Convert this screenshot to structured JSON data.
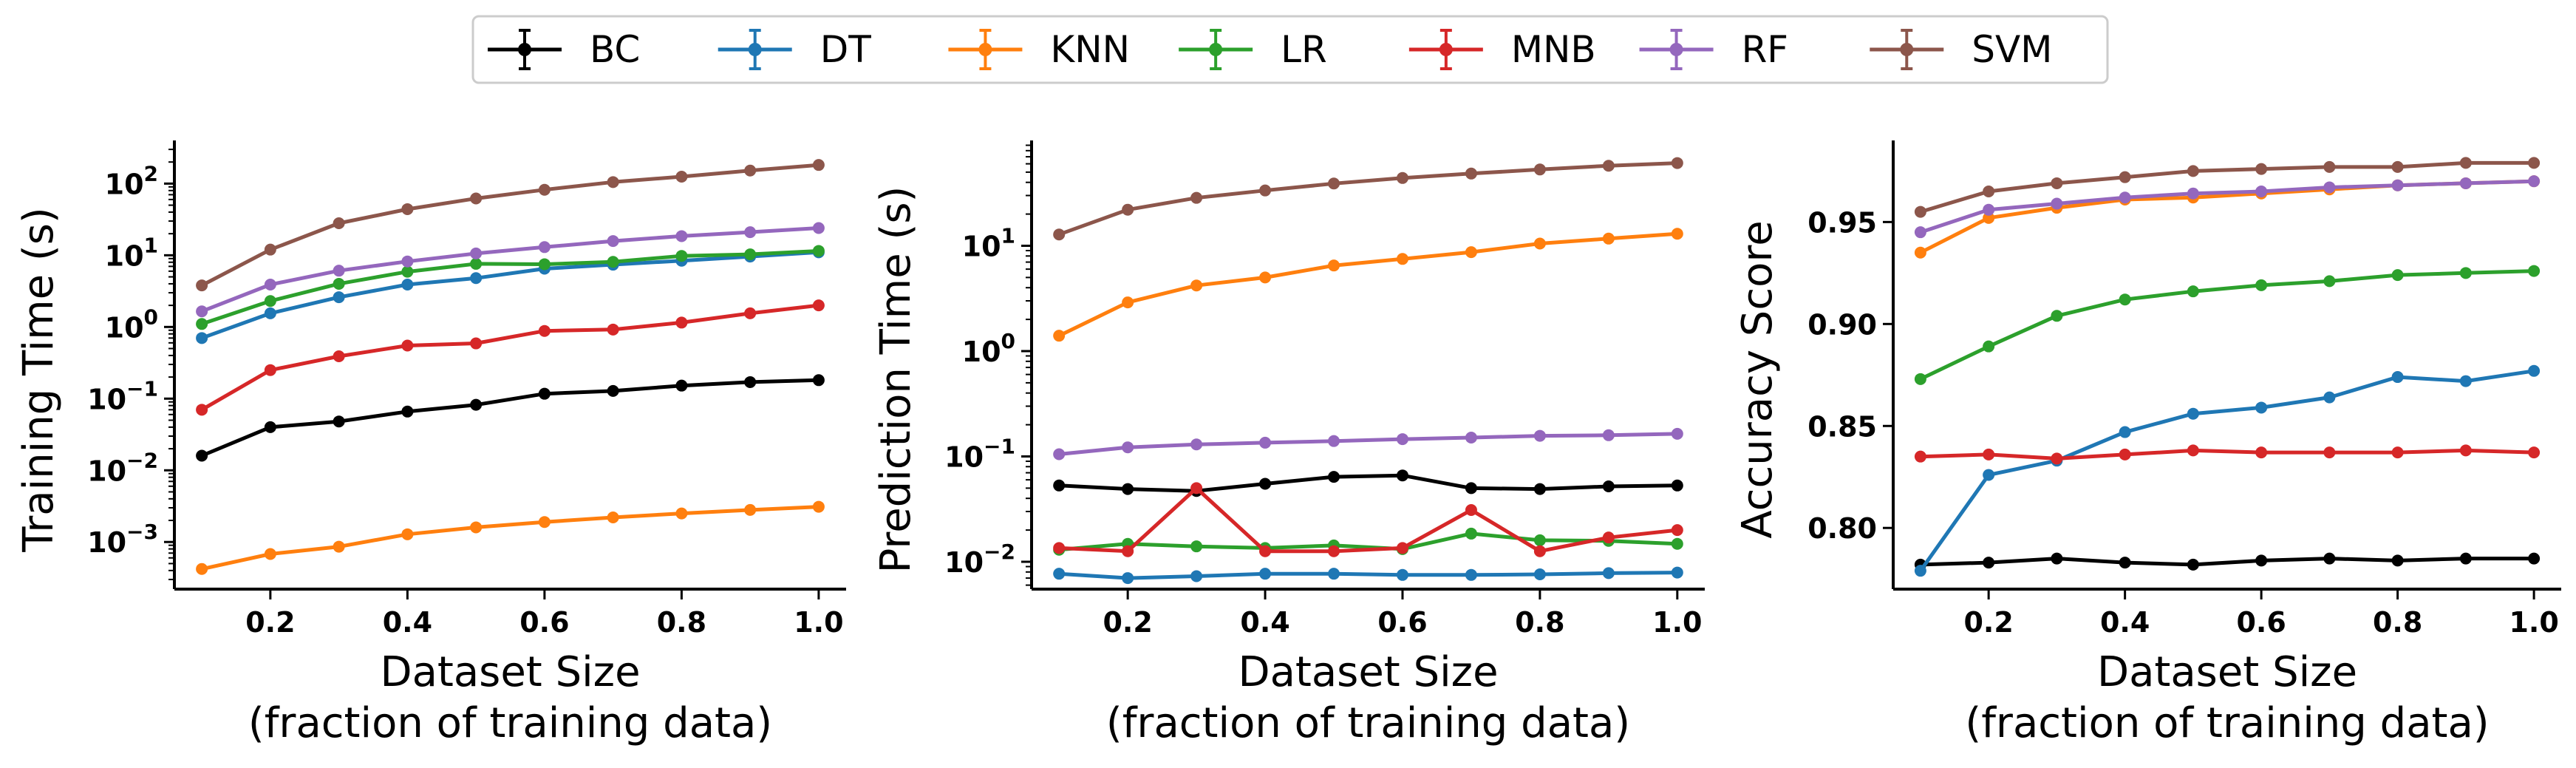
{
  "legend": {
    "items": [
      {
        "name": "BC",
        "color": "#000000"
      },
      {
        "name": "DT",
        "color": "#1f77b4"
      },
      {
        "name": "KNN",
        "color": "#ff7f0e"
      },
      {
        "name": "LR",
        "color": "#2ca02c"
      },
      {
        "name": "MNB",
        "color": "#d62728"
      },
      {
        "name": "RF",
        "color": "#9467bd"
      },
      {
        "name": "SVM",
        "color": "#8c564b"
      }
    ],
    "placement": "top-center"
  },
  "chart_data": [
    {
      "type": "line",
      "ylabel": "Training Time (s)",
      "xlabel_line1": "Dataset Size",
      "xlabel_line2": "(fraction of training data)",
      "yscale": "log",
      "xlim": [
        0.06,
        1.04
      ],
      "ylim": [
        0.00022,
        400
      ],
      "xticks": [
        0.2,
        0.4,
        0.6,
        0.8,
        1.0
      ],
      "xtick_labels": [
        "0.2",
        "0.4",
        "0.6",
        "0.8",
        "1.0"
      ],
      "yticks": [
        0.001,
        0.01,
        0.1,
        1,
        10,
        100
      ],
      "ytick_labels": [
        {
          "base": "10",
          "exp": "−3"
        },
        {
          "base": "10",
          "exp": "−2"
        },
        {
          "base": "10",
          "exp": "−1"
        },
        {
          "base": "10",
          "exp": "0"
        },
        {
          "base": "10",
          "exp": "1"
        },
        {
          "base": "10",
          "exp": "2"
        }
      ],
      "x": [
        0.1,
        0.2,
        0.3,
        0.4,
        0.5,
        0.6,
        0.7,
        0.8,
        0.9,
        1.0
      ],
      "series": [
        {
          "name": "BC",
          "values": [
            0.016,
            0.04,
            0.048,
            0.066,
            0.082,
            0.117,
            0.128,
            0.152,
            0.17,
            0.181
          ]
        },
        {
          "name": "DT",
          "values": [
            0.7,
            1.55,
            2.6,
            3.9,
            4.8,
            6.5,
            7.4,
            8.4,
            9.6,
            11.0
          ]
        },
        {
          "name": "KNN",
          "values": [
            0.00042,
            0.00068,
            0.00086,
            0.00128,
            0.0016,
            0.0019,
            0.0022,
            0.0025,
            0.0028,
            0.0031
          ]
        },
        {
          "name": "LR",
          "values": [
            1.1,
            2.3,
            4.0,
            5.9,
            7.6,
            7.5,
            8.1,
            9.8,
            10.3,
            11.5
          ]
        },
        {
          "name": "MNB",
          "values": [
            0.07,
            0.25,
            0.39,
            0.55,
            0.59,
            0.88,
            0.92,
            1.15,
            1.55,
            2.0
          ]
        },
        {
          "name": "RF",
          "values": [
            1.65,
            3.9,
            6.1,
            8.2,
            10.6,
            13.0,
            15.8,
            18.5,
            21.0,
            24.0
          ]
        },
        {
          "name": "SVM",
          "values": [
            3.8,
            12.0,
            28.0,
            44.0,
            62.0,
            82.0,
            105.0,
            125.0,
            152.0,
            182.0
          ]
        }
      ]
    },
    {
      "type": "line",
      "ylabel": "Prediction Time (s)",
      "xlabel_line1": "Dataset Size",
      "xlabel_line2": "(fraction of training data)",
      "yscale": "log",
      "xlim": [
        0.06,
        1.04
      ],
      "ylim": [
        0.0055,
        100
      ],
      "xticks": [
        0.2,
        0.4,
        0.6,
        0.8,
        1.0
      ],
      "xtick_labels": [
        "0.2",
        "0.4",
        "0.6",
        "0.8",
        "1.0"
      ],
      "yticks": [
        0.01,
        0.1,
        1,
        10
      ],
      "ytick_labels": [
        {
          "base": "10",
          "exp": "−2"
        },
        {
          "base": "10",
          "exp": "−1"
        },
        {
          "base": "10",
          "exp": "0"
        },
        {
          "base": "10",
          "exp": "1"
        }
      ],
      "x": [
        0.1,
        0.2,
        0.3,
        0.4,
        0.5,
        0.6,
        0.7,
        0.8,
        0.9,
        1.0
      ],
      "series": [
        {
          "name": "BC",
          "values": [
            0.053,
            0.049,
            0.047,
            0.055,
            0.064,
            0.066,
            0.05,
            0.049,
            0.052,
            0.053
          ]
        },
        {
          "name": "DT",
          "values": [
            0.0077,
            0.007,
            0.0073,
            0.0077,
            0.0077,
            0.0075,
            0.0075,
            0.0076,
            0.0078,
            0.0079
          ]
        },
        {
          "name": "KNN",
          "values": [
            1.4,
            2.9,
            4.2,
            5.0,
            6.5,
            7.5,
            8.7,
            10.5,
            11.7,
            13.0
          ]
        },
        {
          "name": "LR",
          "values": [
            0.013,
            0.0148,
            0.014,
            0.0135,
            0.0143,
            0.0132,
            0.0185,
            0.016,
            0.0158,
            0.0148
          ]
        },
        {
          "name": "MNB",
          "values": [
            0.0135,
            0.0126,
            0.05,
            0.0126,
            0.0126,
            0.0135,
            0.031,
            0.0126,
            0.017,
            0.02
          ]
        },
        {
          "name": "RF",
          "values": [
            0.105,
            0.122,
            0.13,
            0.135,
            0.14,
            0.146,
            0.151,
            0.157,
            0.159,
            0.164
          ]
        },
        {
          "name": "SVM",
          "values": [
            12.8,
            22.0,
            28.5,
            33.5,
            39.0,
            44.0,
            48.5,
            53.0,
            57.5,
            61.0
          ]
        }
      ]
    },
    {
      "type": "line",
      "ylabel": "Accuracy Score",
      "xlabel_line1": "Dataset Size",
      "xlabel_line2": "(fraction of training data)",
      "yscale": "linear",
      "xlim": [
        0.06,
        1.04
      ],
      "ylim": [
        0.77,
        0.99
      ],
      "xticks": [
        0.2,
        0.4,
        0.6,
        0.8,
        1.0
      ],
      "xtick_labels": [
        "0.2",
        "0.4",
        "0.6",
        "0.8",
        "1.0"
      ],
      "yticks": [
        0.8,
        0.85,
        0.9,
        0.95
      ],
      "ytick_labels": [
        "0.80",
        "0.85",
        "0.90",
        "0.95"
      ],
      "x": [
        0.1,
        0.2,
        0.3,
        0.4,
        0.5,
        0.6,
        0.7,
        0.8,
        0.9,
        1.0
      ],
      "series": [
        {
          "name": "BC",
          "values": [
            0.782,
            0.783,
            0.785,
            0.783,
            0.782,
            0.784,
            0.785,
            0.784,
            0.785,
            0.785
          ]
        },
        {
          "name": "DT",
          "values": [
            0.779,
            0.826,
            0.833,
            0.847,
            0.856,
            0.859,
            0.864,
            0.874,
            0.872,
            0.877
          ]
        },
        {
          "name": "KNN",
          "values": [
            0.935,
            0.952,
            0.957,
            0.961,
            0.962,
            0.964,
            0.966,
            0.968,
            0.969,
            0.97
          ]
        },
        {
          "name": "LR",
          "values": [
            0.873,
            0.889,
            0.904,
            0.912,
            0.916,
            0.919,
            0.921,
            0.924,
            0.925,
            0.926
          ]
        },
        {
          "name": "MNB",
          "values": [
            0.835,
            0.836,
            0.834,
            0.836,
            0.838,
            0.837,
            0.837,
            0.837,
            0.838,
            0.837
          ]
        },
        {
          "name": "RF",
          "values": [
            0.945,
            0.956,
            0.959,
            0.962,
            0.964,
            0.965,
            0.967,
            0.968,
            0.969,
            0.97
          ]
        },
        {
          "name": "SVM",
          "values": [
            0.955,
            0.965,
            0.969,
            0.972,
            0.975,
            0.976,
            0.977,
            0.977,
            0.979,
            0.979
          ]
        }
      ]
    }
  ]
}
